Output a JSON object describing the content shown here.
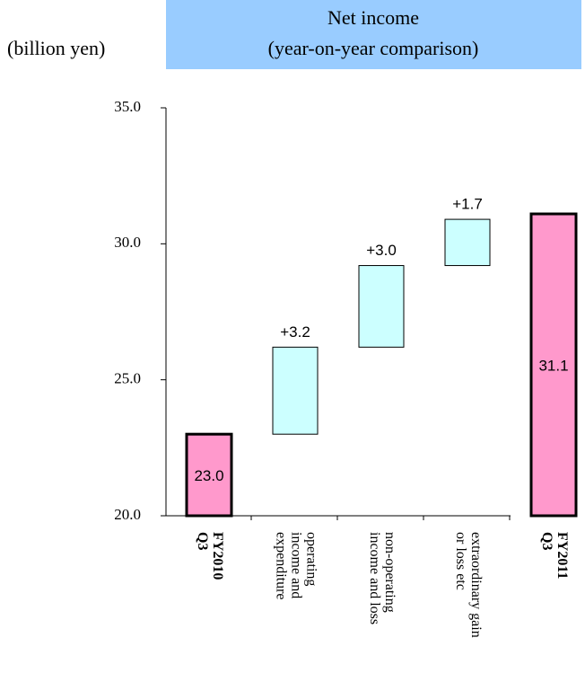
{
  "chart_data": {
    "type": "waterfall",
    "title": [
      "Net income",
      "(year-on-year comparison)"
    ],
    "y_label": "(billion yen)",
    "categories": [
      [
        "FY2010",
        "Q3"
      ],
      [
        "operating",
        "income and",
        "expenditure"
      ],
      [
        "non-operating",
        "income and loss"
      ],
      [
        "extraordinary gain",
        "or loss etc"
      ],
      [
        "FY2011",
        "Q3"
      ]
    ],
    "values": [
      23.0,
      3.2,
      3.0,
      1.7,
      31.1
    ],
    "value_labels": [
      "23.0",
      "+3.2",
      "+3.0",
      "+1.7",
      "31.1"
    ],
    "kinds": [
      "total",
      "delta",
      "delta",
      "delta",
      "total"
    ],
    "colors": {
      "total": "#ff99cc",
      "delta": "#ccffff"
    },
    "ylim": [
      20,
      35
    ],
    "yticks": [
      {
        "value": 20,
        "label": "20.0"
      },
      {
        "value": 25,
        "label": "25.0"
      },
      {
        "value": 30,
        "label": "30.0"
      },
      {
        "value": 35,
        "label": "35.0"
      }
    ]
  }
}
